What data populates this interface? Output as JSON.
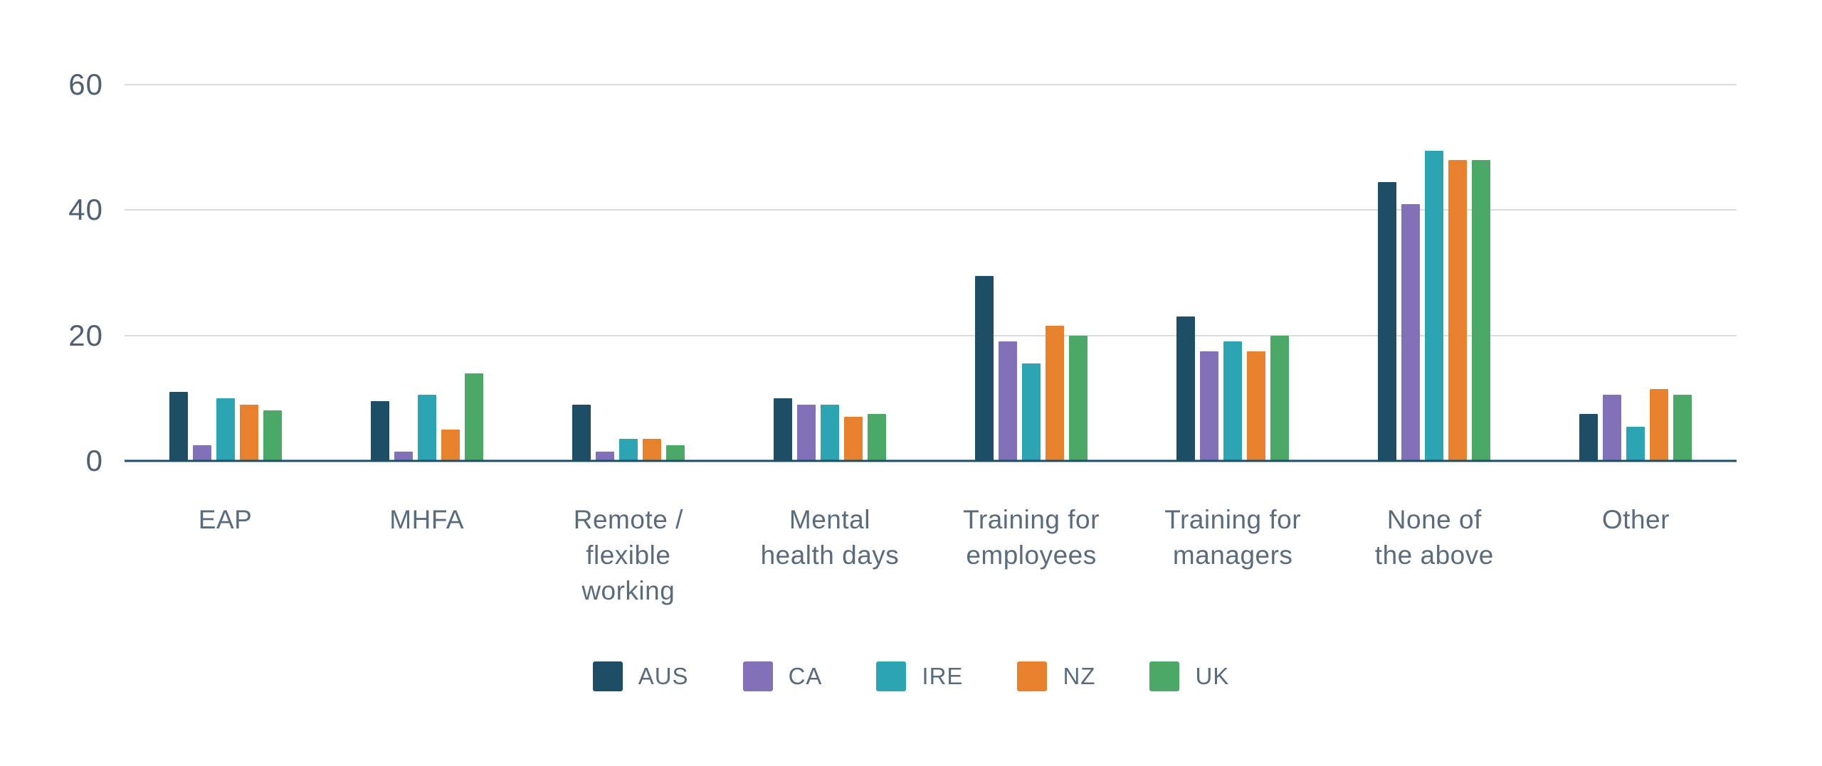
{
  "chart_data": {
    "type": "bar",
    "categories": [
      "EAP",
      "MHFA",
      "Remote /\nflexible\nworking",
      "Mental\nhealth days",
      "Training for\nemployees",
      "Training for\nmanagers",
      "None of\nthe above",
      "Other"
    ],
    "series": [
      {
        "name": "AUS",
        "color": "#1e4d66",
        "values": [
          11,
          9.5,
          9,
          10,
          29.5,
          23,
          44.5,
          7.5
        ]
      },
      {
        "name": "CA",
        "color": "#8271b8",
        "values": [
          2.5,
          1.5,
          1.5,
          9,
          19,
          17.5,
          41,
          10.5
        ]
      },
      {
        "name": "IRE",
        "color": "#2da4b2",
        "values": [
          10,
          10.5,
          3.5,
          9,
          15.5,
          19,
          49.5,
          5.5
        ]
      },
      {
        "name": "NZ",
        "color": "#e8812d",
        "values": [
          9,
          5,
          3.5,
          7,
          21.5,
          17.5,
          48,
          11.5
        ]
      },
      {
        "name": "UK",
        "color": "#4ca866",
        "values": [
          8,
          14,
          2.5,
          7.5,
          20,
          20,
          48,
          10.5
        ]
      }
    ],
    "title": "",
    "xlabel": "",
    "ylabel": "",
    "ylim": [
      0,
      60
    ],
    "yticks": [
      0,
      20,
      40,
      60
    ],
    "grid": true,
    "legend_position": "bottom",
    "colors": {
      "gridline": "#d9dce1",
      "axis_line": "#1d4e66",
      "text": "#5a6b7c",
      "background": "#ffffff"
    }
  }
}
